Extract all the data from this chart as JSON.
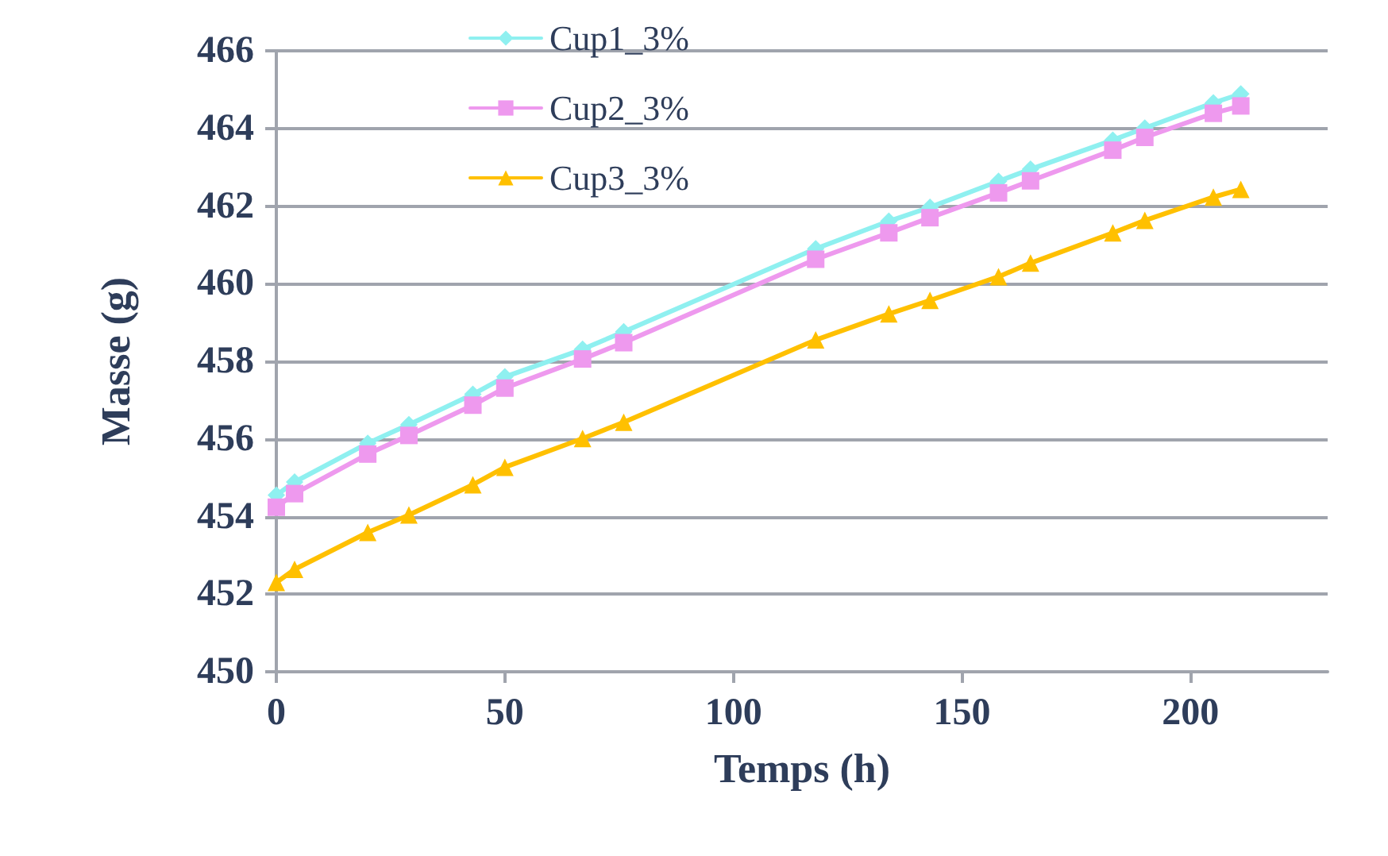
{
  "chart_data": {
    "type": "line",
    "xlabel": "Temps (h)",
    "ylabel": "Masse (g)",
    "x": [
      0,
      4,
      20,
      29,
      43,
      50,
      67,
      76,
      118,
      134,
      143,
      158,
      165,
      183,
      190,
      205,
      211
    ],
    "xlim": [
      0,
      230
    ],
    "xticks": [
      0,
      50,
      100,
      150,
      200
    ],
    "ylim": [
      450,
      466
    ],
    "yticks": [
      450,
      452,
      454,
      456,
      458,
      460,
      462,
      464,
      466
    ],
    "grid": "y",
    "legend": "top",
    "line_style": "solid",
    "series": [
      {
        "name": "Cup1_3%",
        "color": "#8ff0f0",
        "marker": "diamond",
        "values": [
          454.55,
          454.89,
          455.89,
          456.37,
          457.15,
          457.6,
          458.31,
          458.76,
          460.9,
          461.61,
          461.97,
          462.64,
          462.95,
          463.7,
          464.01,
          464.66,
          464.89
        ]
      },
      {
        "name": "Cup2_3%",
        "color": "#ee99ee",
        "marker": "square",
        "values": [
          454.24,
          454.59,
          455.61,
          456.09,
          456.87,
          457.31,
          458.06,
          458.48,
          460.63,
          461.31,
          461.7,
          462.34,
          462.65,
          463.44,
          463.77,
          464.39,
          464.58
        ]
      },
      {
        "name": "Cup3_3%",
        "color": "#ffc000",
        "marker": "triangle",
        "values": [
          452.3,
          452.64,
          453.59,
          454.04,
          454.82,
          455.27,
          456.01,
          456.43,
          458.55,
          459.22,
          459.57,
          460.18,
          460.53,
          461.31,
          461.63,
          462.23,
          462.43
        ]
      }
    ]
  }
}
